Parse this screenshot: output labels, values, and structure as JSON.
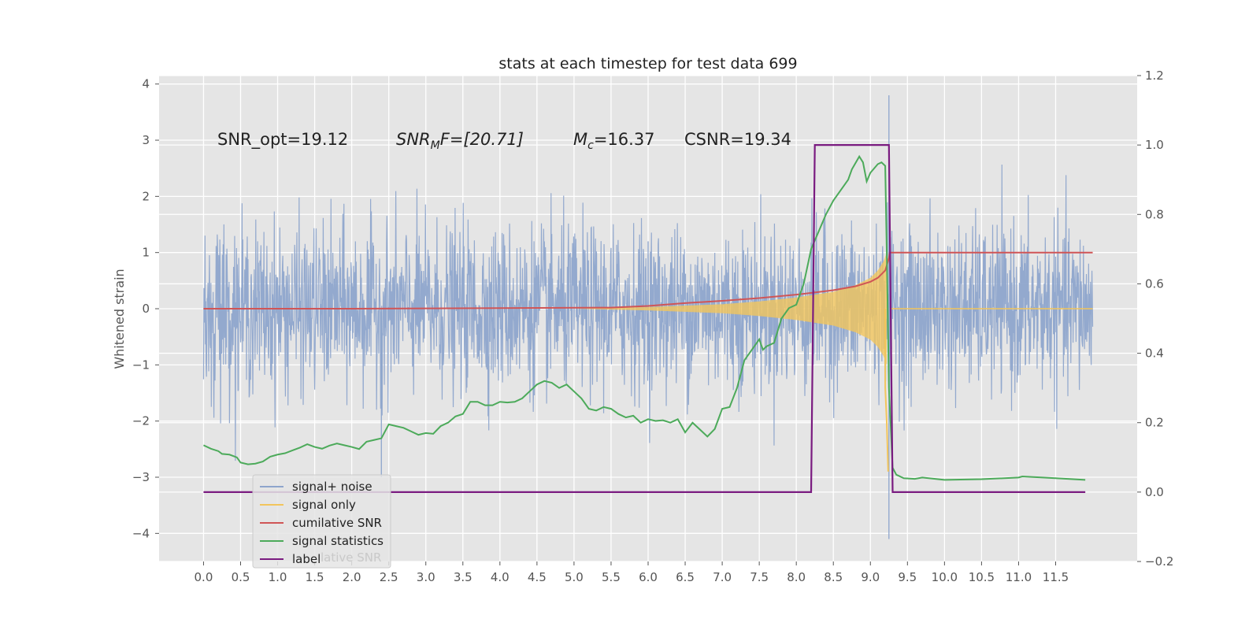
{
  "chart_data": {
    "type": "line",
    "title": "stats at each timestep for test data 699",
    "ylabel": "Whitened strain",
    "xlim": [
      -0.6,
      12.6
    ],
    "ylim": [
      -4.5,
      4.15
    ],
    "y2lim": [
      -0.2,
      1.2
    ],
    "xticks": [
      "0.0",
      "0.5",
      "1.0",
      "1.5",
      "2.0",
      "2.5",
      "3.0",
      "3.5",
      "4.0",
      "4.5",
      "5.0",
      "5.5",
      "6.0",
      "6.5",
      "7.0",
      "7.5",
      "8.0",
      "8.5",
      "9.0",
      "9.5",
      "10.0",
      "10.5",
      "11.0",
      "11.5"
    ],
    "yticks": [
      "4",
      "3",
      "2",
      "1",
      "0",
      "−1",
      "−2",
      "−3",
      "−4"
    ],
    "y2ticks": [
      "1.2",
      "1.0",
      "0.8",
      "0.6",
      "0.4",
      "0.2",
      "0.0",
      "−0.2"
    ],
    "grid": true,
    "legend_position": "lower-left",
    "annotations": {
      "snr_opt": "SNR_opt=19.12",
      "snr_mf_main": "SNR",
      "snr_mf_sub": "M",
      "snr_mf_rest": "F=[20.71]",
      "mc_main": "M",
      "mc_sub": "c",
      "mc_rest": "=16.37",
      "csnr": "CSNR=19.34"
    },
    "legend": [
      {
        "label": "signal+ noise",
        "color": "#8ea5cc"
      },
      {
        "label": "signal only",
        "color": "#f2c55c"
      },
      {
        "label": "cumilative SNR",
        "color": "#d05556"
      },
      {
        "label": "signal statistics",
        "color": "#4caa5a"
      },
      {
        "label": "label",
        "color": "#7a1b80"
      }
    ],
    "legend_ghost_text": "lative SNR",
    "series": [
      {
        "name": "signal+ noise",
        "axis": "left",
        "color": "#8ea5cc",
        "t_range": [
          0.0,
          12.0
        ],
        "noise_std": 0.72,
        "spike_points": [
          [
            6.0,
            1.2
          ],
          [
            6.0,
            -1.1
          ],
          [
            9.25,
            3.8
          ],
          [
            9.25,
            -4.1
          ],
          [
            2.4,
            -3.0
          ]
        ]
      },
      {
        "name": "signal only",
        "axis": "left",
        "color": "#f2c55c",
        "envelope_points": [
          [
            5.0,
            0.0
          ],
          [
            6.0,
            0.03
          ],
          [
            7.0,
            0.08
          ],
          [
            7.5,
            0.13
          ],
          [
            8.0,
            0.2
          ],
          [
            8.5,
            0.3
          ],
          [
            8.8,
            0.42
          ],
          [
            9.0,
            0.55
          ],
          [
            9.1,
            0.68
          ],
          [
            9.18,
            0.85
          ],
          [
            9.22,
            1.0
          ],
          [
            9.25,
            0.0
          ]
        ],
        "tail_negative_points": [
          [
            9.2,
            -1.4
          ],
          [
            9.22,
            -2.0
          ],
          [
            9.24,
            -2.9
          ]
        ]
      },
      {
        "name": "cumilative SNR",
        "axis": "left",
        "color": "#d05556",
        "points": [
          [
            0.0,
            0.0
          ],
          [
            2.0,
            0.0
          ],
          [
            4.0,
            0.01
          ],
          [
            5.5,
            0.02
          ],
          [
            6.0,
            0.05
          ],
          [
            6.5,
            0.1
          ],
          [
            7.0,
            0.14
          ],
          [
            7.5,
            0.19
          ],
          [
            8.0,
            0.25
          ],
          [
            8.5,
            0.33
          ],
          [
            8.8,
            0.4
          ],
          [
            9.0,
            0.48
          ],
          [
            9.1,
            0.55
          ],
          [
            9.2,
            0.68
          ],
          [
            9.25,
            0.9
          ],
          [
            9.26,
            1.0
          ],
          [
            12.0,
            1.0
          ]
        ]
      },
      {
        "name": "signal statistics",
        "axis": "right",
        "color": "#4caa5a",
        "points": [
          [
            0.0,
            0.135
          ],
          [
            0.1,
            0.125
          ],
          [
            0.2,
            0.118
          ],
          [
            0.25,
            0.11
          ],
          [
            0.35,
            0.108
          ],
          [
            0.45,
            0.1
          ],
          [
            0.5,
            0.085
          ],
          [
            0.6,
            0.08
          ],
          [
            0.7,
            0.082
          ],
          [
            0.8,
            0.088
          ],
          [
            0.9,
            0.102
          ],
          [
            1.0,
            0.108
          ],
          [
            1.1,
            0.112
          ],
          [
            1.2,
            0.12
          ],
          [
            1.3,
            0.128
          ],
          [
            1.4,
            0.138
          ],
          [
            1.5,
            0.13
          ],
          [
            1.6,
            0.125
          ],
          [
            1.7,
            0.134
          ],
          [
            1.8,
            0.14
          ],
          [
            1.9,
            0.135
          ],
          [
            2.0,
            0.13
          ],
          [
            2.1,
            0.124
          ],
          [
            2.2,
            0.145
          ],
          [
            2.3,
            0.15
          ],
          [
            2.4,
            0.155
          ],
          [
            2.5,
            0.195
          ],
          [
            2.6,
            0.19
          ],
          [
            2.7,
            0.185
          ],
          [
            2.8,
            0.175
          ],
          [
            2.9,
            0.165
          ],
          [
            3.0,
            0.17
          ],
          [
            3.1,
            0.168
          ],
          [
            3.2,
            0.19
          ],
          [
            3.3,
            0.2
          ],
          [
            3.4,
            0.218
          ],
          [
            3.5,
            0.225
          ],
          [
            3.6,
            0.26
          ],
          [
            3.7,
            0.26
          ],
          [
            3.8,
            0.25
          ],
          [
            3.9,
            0.25
          ],
          [
            4.0,
            0.26
          ],
          [
            4.1,
            0.258
          ],
          [
            4.2,
            0.26
          ],
          [
            4.3,
            0.27
          ],
          [
            4.4,
            0.29
          ],
          [
            4.5,
            0.31
          ],
          [
            4.6,
            0.32
          ],
          [
            4.7,
            0.315
          ],
          [
            4.8,
            0.3
          ],
          [
            4.9,
            0.31
          ],
          [
            5.0,
            0.29
          ],
          [
            5.1,
            0.27
          ],
          [
            5.2,
            0.24
          ],
          [
            5.3,
            0.235
          ],
          [
            5.4,
            0.245
          ],
          [
            5.5,
            0.24
          ],
          [
            5.6,
            0.225
          ],
          [
            5.7,
            0.215
          ],
          [
            5.8,
            0.22
          ],
          [
            5.9,
            0.2
          ],
          [
            6.0,
            0.21
          ],
          [
            6.1,
            0.205
          ],
          [
            6.2,
            0.207
          ],
          [
            6.3,
            0.2
          ],
          [
            6.4,
            0.21
          ],
          [
            6.5,
            0.172
          ],
          [
            6.6,
            0.2
          ],
          [
            6.7,
            0.18
          ],
          [
            6.8,
            0.16
          ],
          [
            6.9,
            0.182
          ],
          [
            7.0,
            0.24
          ],
          [
            7.1,
            0.245
          ],
          [
            7.2,
            0.3
          ],
          [
            7.3,
            0.38
          ],
          [
            7.4,
            0.41
          ],
          [
            7.5,
            0.44
          ],
          [
            7.55,
            0.41
          ],
          [
            7.6,
            0.42
          ],
          [
            7.7,
            0.43
          ],
          [
            7.8,
            0.5
          ],
          [
            7.9,
            0.53
          ],
          [
            8.0,
            0.54
          ],
          [
            8.1,
            0.6
          ],
          [
            8.2,
            0.7
          ],
          [
            8.3,
            0.75
          ],
          [
            8.4,
            0.8
          ],
          [
            8.5,
            0.84
          ],
          [
            8.6,
            0.87
          ],
          [
            8.7,
            0.9
          ],
          [
            8.75,
            0.93
          ],
          [
            8.85,
            0.967
          ],
          [
            8.9,
            0.95
          ],
          [
            8.95,
            0.895
          ],
          [
            9.0,
            0.92
          ],
          [
            9.1,
            0.945
          ],
          [
            9.15,
            0.95
          ],
          [
            9.2,
            0.94
          ],
          [
            9.22,
            0.7
          ],
          [
            9.25,
            0.3
          ],
          [
            9.3,
            0.07
          ],
          [
            9.35,
            0.05
          ],
          [
            9.45,
            0.04
          ],
          [
            9.6,
            0.038
          ],
          [
            9.7,
            0.042
          ],
          [
            10.0,
            0.035
          ],
          [
            10.5,
            0.037
          ],
          [
            11.0,
            0.042
          ],
          [
            11.05,
            0.045
          ],
          [
            11.5,
            0.04
          ],
          [
            11.9,
            0.035
          ]
        ]
      },
      {
        "name": "label",
        "axis": "right",
        "color": "#7a1b80",
        "points": [
          [
            0.0,
            0.0
          ],
          [
            8.2,
            0.0
          ],
          [
            8.25,
            1.0
          ],
          [
            9.25,
            1.0
          ],
          [
            9.3,
            0.0
          ],
          [
            11.9,
            0.0
          ]
        ]
      }
    ]
  }
}
